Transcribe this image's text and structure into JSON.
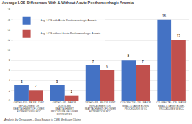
{
  "chart_data": {
    "type": "bar",
    "title": "Average LOS Differences With & Without Acute Posthemorrhagic Anemia",
    "categories": [
      "ORTHO: 470 - MAJOR JOINT\nREPLACEMENT OR\nREATTACHMENT OF LOWER\nEXTREMITY W/O MCC",
      "ORTHO: 461 - MAJOR\nJOINT/LIMB\nREATTACHMENT\nPROCEDURE OF LOWER\nEXTREMITIES",
      "ORTHO: 469 - MAJOR JOINT\nREPLACEMENT OR\nREATTACHMENT OF LOWER\nEXTREMITY W MCC",
      "COLORECTAL: 330 - MAJOR\nSMALL & LARGE BOWEL\nPROCEDURES W CC",
      "COLORECTAL: 329 - MAJOR\nSMALL & LARGE BOWEL\nPROCEDURES W MCC"
    ],
    "series": [
      {
        "name": "Avg. LOS with Acute Posthemorrhagic Anemia",
        "color": "#4472C4",
        "values": [
          3,
          3,
          7,
          8,
          16
        ]
      },
      {
        "name": "Avg. LOS without Acute Posthemorrhagic Anemia",
        "color": "#C0504D",
        "values": [
          2,
          1,
          6,
          7,
          12
        ]
      }
    ],
    "ylim": [
      0,
      18
    ],
    "yticks": [
      0,
      2,
      4,
      6,
      8,
      10,
      12,
      14,
      16,
      18
    ],
    "grid": true,
    "legend": "upper left",
    "data_labels": true,
    "annotations": [
      "Analysis by Dexuccom – Data Source is CMS Medicare Claims"
    ]
  }
}
